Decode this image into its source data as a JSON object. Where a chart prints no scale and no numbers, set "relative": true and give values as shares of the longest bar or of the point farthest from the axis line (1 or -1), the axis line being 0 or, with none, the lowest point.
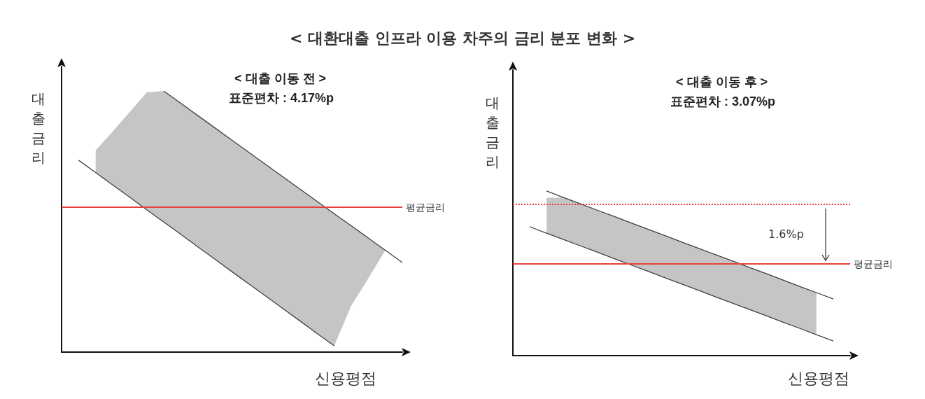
{
  "chart_data": [
    {
      "type": "line",
      "title": "< 대환대출 인프라 이용 차주의 금리 분포 변화 >",
      "subtitle": "< 대출 이동 전 >",
      "annotations": [
        "표준편차 : 4.17%p"
      ],
      "xlabel": "신용평점",
      "ylabel": "대출금리",
      "relative": true,
      "categories": [
        null,
        null,
        null,
        null,
        null,
        null,
        null,
        null,
        null,
        null,
        null,
        null,
        null,
        null,
        null,
        null,
        null,
        null,
        null,
        null,
        null
      ],
      "series": [
        {
          "color": "#404040",
          "values": [
            null,
            null,
            null,
            null,
            null,
            null,
            1,
            0.953,
            0.906,
            0.859,
            0.812,
            0.765,
            0.718,
            0.671,
            0.624,
            0.577,
            0.53,
            0.484,
            0.437,
            0.39,
            0.343
          ]
        },
        {
          "color": "#404040",
          "values": [
            null,
            0.735,
            0.688,
            0.64,
            0.593,
            0.545,
            0.498,
            0.451,
            0.403,
            0.356,
            0.308,
            0.261,
            0.214,
            0.166,
            0.119,
            0.071,
            0.024,
            null,
            null,
            null,
            null
          ],
          "upper": [
            null,
            null,
            0.772,
            0.845,
            0.92,
            0.995,
            1,
            0.953,
            0.906,
            0.859,
            0.812,
            0.765,
            0.718,
            0.671,
            0.624,
            0.577,
            0.53,
            0.484,
            0.437,
            0.39,
            null
          ],
          "lower": [
            null,
            null,
            0.688,
            0.64,
            0.593,
            0.545,
            0.498,
            0.451,
            0.403,
            0.356,
            0.308,
            0.261,
            0.214,
            0.166,
            0.119,
            0.071,
            0.024,
            0.177,
            0.282,
            0.39,
            null
          ]
        }
      ],
      "ref_lines": [
        {
          "axis": "y",
          "value": 0.555,
          "label": "평균금리",
          "color": "#e8403a"
        }
      ]
    },
    {
      "type": "line",
      "subtitle": "< 대출 이동 후 >",
      "annotations": [
        "표준편차 : 3.07%p",
        "1.6%p"
      ],
      "xlabel": "신용평점",
      "ylabel": "대출금리",
      "relative": true,
      "categories": [
        null,
        null,
        null,
        null,
        null,
        null,
        null,
        null,
        null,
        null,
        null,
        null,
        null,
        null,
        null,
        null,
        null,
        null,
        null,
        null,
        null
      ],
      "series": [
        {
          "color": "#404040",
          "values": [
            null,
            null,
            1,
            0.961,
            0.923,
            0.884,
            0.846,
            0.807,
            0.769,
            0.73,
            0.691,
            0.653,
            0.614,
            0.576,
            0.537,
            0.499,
            0.46,
            0.421,
            0.383,
            0.344,
            null
          ]
        },
        {
          "color": "#404040",
          "values": [
            null,
            0.783,
            0.744,
            0.706,
            0.667,
            0.629,
            0.59,
            0.551,
            0.513,
            0.474,
            0.436,
            0.397,
            0.358,
            0.32,
            0.281,
            0.243,
            0.204,
            0.166,
            0.127,
            0.089,
            null
          ],
          "upper": [
            null,
            null,
            0.96,
            0.961,
            0.923,
            0.884,
            0.846,
            0.807,
            0.769,
            0.73,
            0.691,
            0.653,
            0.614,
            0.576,
            0.537,
            0.499,
            0.46,
            0.421,
            0.383,
            null,
            null
          ],
          "lower": [
            null,
            null,
            0.744,
            0.706,
            0.667,
            0.629,
            0.59,
            0.551,
            0.513,
            0.474,
            0.436,
            0.397,
            0.358,
            0.32,
            0.281,
            0.243,
            0.204,
            0.166,
            0.127,
            null,
            null
          ]
        }
      ],
      "ref_lines": [
        {
          "axis": "y",
          "value": 0.919,
          "color": "#e8403a",
          "line_style": "dotted"
        },
        {
          "axis": "y",
          "value": 0.557,
          "label": "평균금리",
          "color": "#e8403a"
        }
      ]
    }
  ]
}
